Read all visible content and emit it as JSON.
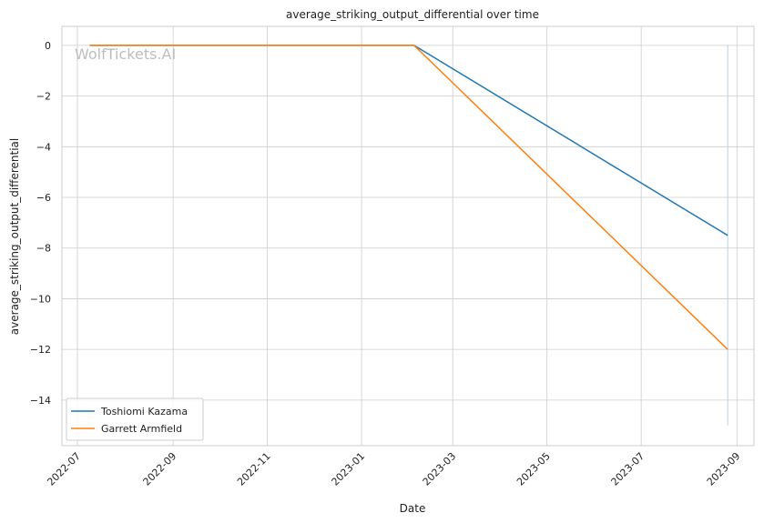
{
  "chart_data": {
    "type": "line",
    "title": "average_striking_output_differential over time",
    "xlabel": "Date",
    "ylabel": "average_striking_output_differential",
    "watermark": "WolfTickets.AI",
    "xlim": [
      "2022-06-21",
      "2023-09-12"
    ],
    "ylim": [
      -15.8,
      0.75
    ],
    "x_ticks": [
      "2022-07-01",
      "2022-09-01",
      "2022-11-01",
      "2023-01-01",
      "2023-03-01",
      "2023-05-01",
      "2023-07-01",
      "2023-09-01"
    ],
    "x_tick_labels": [
      "2022-07",
      "2022-09",
      "2022-11",
      "2023-01",
      "2023-03",
      "2023-05",
      "2023-07",
      "2023-09"
    ],
    "y_ticks": [
      0,
      -2,
      -4,
      -6,
      -8,
      -10,
      -12,
      -14
    ],
    "y_tick_labels": [
      "0",
      "−2",
      "−4",
      "−6",
      "−8",
      "−10",
      "−12",
      "−14"
    ],
    "grid": true,
    "legend_position": "bottom-left",
    "series": [
      {
        "name": "Toshiomi Kazama",
        "color": "#1f77b4",
        "points": [
          {
            "x": "2022-07-09",
            "y": 0
          },
          {
            "x": "2023-02-04",
            "y": 0
          },
          {
            "x": "2023-08-26",
            "y": -7.5
          }
        ]
      },
      {
        "name": "Garrett Armfield",
        "color": "#ff7f0e",
        "points": [
          {
            "x": "2022-07-09",
            "y": 0
          },
          {
            "x": "2023-02-04",
            "y": 0
          },
          {
            "x": "2023-08-26",
            "y": -12
          }
        ]
      }
    ],
    "reference_line": {
      "x": "2023-08-26",
      "y_from": 0,
      "y_to": -15,
      "color": "#a6c8e0"
    }
  }
}
